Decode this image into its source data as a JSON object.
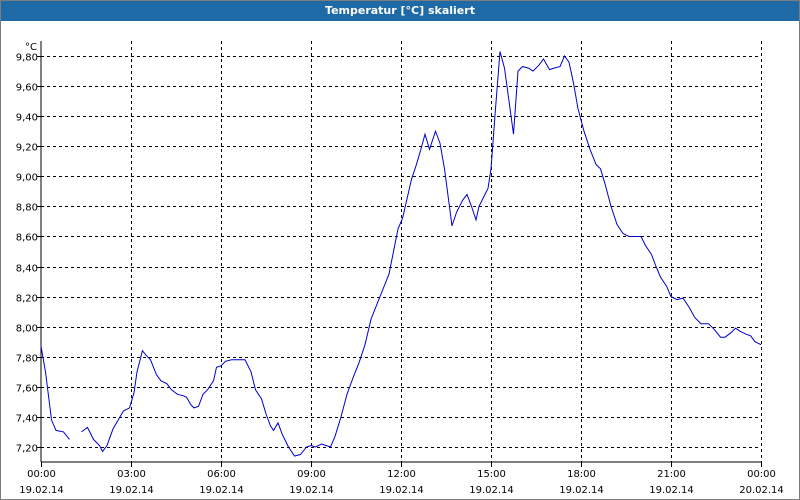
{
  "window": {
    "title": "Temperatur [°C] skaliert"
  },
  "chart_data": {
    "type": "line",
    "title": "Temperatur [°C] skaliert",
    "ylabel": "°C",
    "xlabel": "",
    "ylim": [
      7.1,
      9.9
    ],
    "yticks": [
      "9,80",
      "9,60",
      "9,40",
      "9,20",
      "9,00",
      "8,80",
      "8,60",
      "8,40",
      "8,20",
      "8,00",
      "7,80",
      "7,60",
      "7,40",
      "7,20"
    ],
    "ytick_values": [
      9.8,
      9.6,
      9.4,
      9.2,
      9.0,
      8.8,
      8.6,
      8.4,
      8.2,
      8.0,
      7.8,
      7.6,
      7.4,
      7.2
    ],
    "xlim": [
      0,
      24
    ],
    "xticks": [
      {
        "time": "00:00",
        "date": "19.02.14"
      },
      {
        "time": "03:00",
        "date": "19.02.14"
      },
      {
        "time": "06:00",
        "date": "19.02.14"
      },
      {
        "time": "09:00",
        "date": "19.02.14"
      },
      {
        "time": "12:00",
        "date": "19.02.14"
      },
      {
        "time": "15:00",
        "date": "19.02.14"
      },
      {
        "time": "18:00",
        "date": "19.02.14"
      },
      {
        "time": "21:00",
        "date": "19.02.14"
      },
      {
        "time": "00:00",
        "date": "20.02.14"
      }
    ],
    "grid": true,
    "line_color": "#0000cc",
    "series": [
      {
        "values": [
          [
            0.0,
            7.87
          ],
          [
            0.15,
            7.7
          ],
          [
            0.35,
            7.38
          ],
          [
            0.5,
            7.31
          ],
          [
            0.75,
            7.3
          ],
          [
            0.95,
            7.25
          ]
        ]
      },
      {
        "values": [
          [
            1.35,
            7.3
          ],
          [
            1.55,
            7.33
          ],
          [
            1.75,
            7.25
          ],
          [
            1.95,
            7.21
          ],
          [
            2.05,
            7.17
          ],
          [
            2.2,
            7.21
          ],
          [
            2.4,
            7.32
          ],
          [
            2.75,
            7.44
          ],
          [
            2.95,
            7.46
          ],
          [
            3.1,
            7.56
          ],
          [
            3.2,
            7.7
          ],
          [
            3.33,
            7.8
          ],
          [
            3.38,
            7.84
          ],
          [
            3.5,
            7.81
          ],
          [
            3.65,
            7.78
          ],
          [
            3.85,
            7.68
          ],
          [
            4.0,
            7.64
          ],
          [
            4.2,
            7.62
          ],
          [
            4.35,
            7.58
          ],
          [
            4.55,
            7.55
          ],
          [
            4.75,
            7.54
          ],
          [
            4.85,
            7.53
          ],
          [
            5.0,
            7.48
          ],
          [
            5.1,
            7.46
          ],
          [
            5.25,
            7.47
          ],
          [
            5.4,
            7.55
          ],
          [
            5.55,
            7.58
          ],
          [
            5.75,
            7.64
          ],
          [
            5.85,
            7.73
          ],
          [
            6.0,
            7.74
          ],
          [
            6.15,
            7.77
          ],
          [
            6.35,
            7.78
          ],
          [
            6.6,
            7.78
          ],
          [
            6.8,
            7.78
          ],
          [
            7.0,
            7.7
          ],
          [
            7.15,
            7.58
          ],
          [
            7.35,
            7.52
          ],
          [
            7.5,
            7.42
          ],
          [
            7.65,
            7.34
          ],
          [
            7.75,
            7.31
          ],
          [
            7.9,
            7.36
          ],
          [
            8.05,
            7.28
          ],
          [
            8.25,
            7.2
          ],
          [
            8.45,
            7.14
          ],
          [
            8.65,
            7.15
          ],
          [
            8.85,
            7.2
          ],
          [
            9.0,
            7.21
          ],
          [
            9.15,
            7.2
          ],
          [
            9.35,
            7.22
          ],
          [
            9.5,
            7.21
          ],
          [
            9.65,
            7.2
          ],
          [
            9.8,
            7.27
          ],
          [
            10.0,
            7.4
          ],
          [
            10.2,
            7.55
          ],
          [
            10.4,
            7.66
          ],
          [
            10.6,
            7.76
          ],
          [
            10.8,
            7.88
          ],
          [
            11.0,
            8.05
          ],
          [
            11.2,
            8.15
          ],
          [
            11.4,
            8.25
          ],
          [
            11.6,
            8.35
          ],
          [
            11.8,
            8.55
          ],
          [
            11.9,
            8.65
          ],
          [
            12.05,
            8.72
          ],
          [
            12.2,
            8.85
          ],
          [
            12.35,
            8.98
          ],
          [
            12.5,
            9.07
          ],
          [
            12.65,
            9.17
          ],
          [
            12.8,
            9.28
          ],
          [
            12.95,
            9.18
          ],
          [
            13.15,
            9.3
          ],
          [
            13.3,
            9.22
          ],
          [
            13.45,
            9.05
          ],
          [
            13.7,
            8.67
          ],
          [
            13.85,
            8.76
          ],
          [
            14.05,
            8.84
          ],
          [
            14.2,
            8.88
          ],
          [
            14.35,
            8.8
          ],
          [
            14.5,
            8.71
          ],
          [
            14.6,
            8.8
          ],
          [
            14.75,
            8.86
          ],
          [
            14.9,
            8.92
          ],
          [
            15.0,
            9.05
          ],
          [
            15.15,
            9.45
          ],
          [
            15.3,
            9.83
          ],
          [
            15.45,
            9.72
          ],
          [
            15.6,
            9.5
          ],
          [
            15.75,
            9.28
          ],
          [
            15.9,
            9.7
          ],
          [
            16.05,
            9.73
          ],
          [
            16.25,
            9.72
          ],
          [
            16.4,
            9.7
          ],
          [
            16.6,
            9.74
          ],
          [
            16.75,
            9.78
          ],
          [
            16.95,
            9.71
          ],
          [
            17.1,
            9.72
          ],
          [
            17.3,
            9.73
          ],
          [
            17.45,
            9.8
          ],
          [
            17.6,
            9.76
          ],
          [
            17.75,
            9.62
          ],
          [
            17.9,
            9.45
          ],
          [
            18.1,
            9.3
          ],
          [
            18.3,
            9.18
          ],
          [
            18.5,
            9.08
          ],
          [
            18.65,
            9.05
          ],
          [
            18.8,
            8.95
          ],
          [
            19.0,
            8.8
          ],
          [
            19.2,
            8.68
          ],
          [
            19.4,
            8.62
          ],
          [
            19.6,
            8.6
          ],
          [
            19.8,
            8.6
          ],
          [
            20.0,
            8.6
          ],
          [
            20.15,
            8.54
          ],
          [
            20.35,
            8.48
          ],
          [
            20.5,
            8.4
          ],
          [
            20.65,
            8.33
          ],
          [
            20.85,
            8.27
          ],
          [
            21.0,
            8.2
          ],
          [
            21.2,
            8.18
          ],
          [
            21.4,
            8.19
          ],
          [
            21.6,
            8.13
          ],
          [
            21.8,
            8.06
          ],
          [
            22.0,
            8.02
          ],
          [
            22.25,
            8.02
          ],
          [
            22.45,
            7.98
          ],
          [
            22.65,
            7.93
          ],
          [
            22.8,
            7.93
          ],
          [
            23.0,
            7.96
          ],
          [
            23.15,
            7.99
          ],
          [
            23.3,
            7.97
          ],
          [
            23.5,
            7.95
          ],
          [
            23.65,
            7.94
          ],
          [
            23.8,
            7.9
          ],
          [
            24.0,
            7.88
          ]
        ]
      }
    ]
  }
}
